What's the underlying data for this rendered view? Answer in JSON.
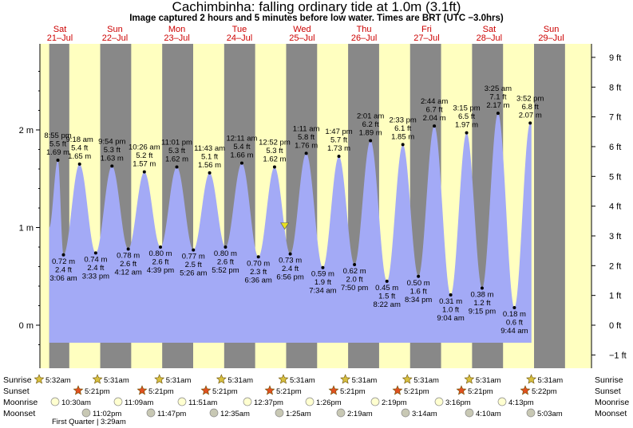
{
  "title": "Cachimbinha: falling  ordinary tide at 1.0m (3.1ft)",
  "subtitle": "Image captured 2 hours and 5 minutes before low water. Times are BRT (UTC −3.0hrs)",
  "colors": {
    "water": "#a3aaf6",
    "day": "#ffffc0",
    "night": "#888888",
    "dayLabel": "#cc0000"
  },
  "days": [
    {
      "dow": "Sat",
      "date": "21–Jul"
    },
    {
      "dow": "Sun",
      "date": "22–Jul"
    },
    {
      "dow": "Mon",
      "date": "23–Jul"
    },
    {
      "dow": "Tue",
      "date": "24–Jul"
    },
    {
      "dow": "Wed",
      "date": "25–Jul"
    },
    {
      "dow": "Thu",
      "date": "26–Jul"
    },
    {
      "dow": "Fri",
      "date": "27–Jul"
    },
    {
      "dow": "Sat",
      "date": "28–Jul"
    },
    {
      "dow": "Sun",
      "date": "29–Jul"
    }
  ],
  "chart_data": {
    "type": "area",
    "title": "Cachimbinha: falling  ordinary tide at 1.0m (3.1ft)",
    "ylabel_left_unit": "m",
    "ylabel_right_unit": "ft",
    "ylim_m": [
      -0.3,
      2.8
    ],
    "left_ticks": [
      "0 m",
      "1 m",
      "2 m"
    ],
    "right_ticks": [
      "−1 ft",
      "0 ft",
      "1 ft",
      "2 ft",
      "3 ft",
      "4 ft",
      "5 ft",
      "6 ft",
      "7 ft",
      "8 ft",
      "9 ft"
    ],
    "current_level_m": 1.0,
    "day_starts": [
      {
        "day": 0,
        "start": -0.25
      },
      {
        "day": 1,
        "start": 0.96
      },
      {
        "day": 2,
        "start": 1.96
      },
      {
        "day": 3,
        "start": 2.97
      },
      {
        "day": 4,
        "start": 3.98
      },
      {
        "day": 5,
        "start": 4.98
      },
      {
        "day": 6,
        "start": 5.99
      },
      {
        "day": 7,
        "start": 7.0
      },
      {
        "day": 8,
        "start": 8.0
      }
    ],
    "daylight": [
      {
        "rise": 0.224,
        "set": 0.723
      },
      {
        "rise": 1.223,
        "set": 1.723
      },
      {
        "rise": 2.223,
        "set": 2.723
      },
      {
        "rise": 3.223,
        "set": 3.723
      },
      {
        "rise": 4.223,
        "set": 4.723
      },
      {
        "rise": 5.223,
        "set": 5.723
      },
      {
        "rise": 6.223,
        "set": 6.723
      },
      {
        "rise": 7.223,
        "set": 7.723
      },
      {
        "rise": 8.223,
        "set": 8.723
      }
    ],
    "series": [
      {
        "name": "",
        "type": "tide",
        "points": [
          {
            "t": -0.1,
            "m": 1.0,
            "type": "start"
          },
          {
            "t": 0.04,
            "m": 1.69,
            "type": "high",
            "time": "8:55 pm",
            "ft": "5.5 ft",
            "mtxt": "1.69 m"
          },
          {
            "t": 0.13,
            "m": 0.72,
            "type": "low",
            "time": "3:06 am",
            "ft": "2.4 ft",
            "mtxt": "0.72 m"
          },
          {
            "t": 0.39,
            "m": 1.65,
            "type": "high",
            "time": "9:18 am",
            "ft": "5.4 ft",
            "mtxt": "1.65 m"
          },
          {
            "t": 0.65,
            "m": 0.74,
            "type": "low",
            "time": "3:33 pm",
            "ft": "2.4 ft",
            "mtxt": "0.74 m"
          },
          {
            "t": 0.913,
            "m": 1.63,
            "type": "high",
            "time": "9:54 pm",
            "ft": "5.3 ft",
            "mtxt": "1.63 m"
          },
          {
            "t": 1.175,
            "m": 0.78,
            "type": "low",
            "time": "4:12 am",
            "ft": "2.6 ft",
            "mtxt": "0.78 m"
          },
          {
            "t": 1.435,
            "m": 1.57,
            "type": "high",
            "time": "10:26 am",
            "ft": "5.2 ft",
            "mtxt": "1.57 m"
          },
          {
            "t": 1.695,
            "m": 0.8,
            "type": "low",
            "time": "4:39 pm",
            "ft": "2.6 ft",
            "mtxt": "0.80 m"
          },
          {
            "t": 1.959,
            "m": 1.62,
            "type": "high",
            "time": "11:01 pm",
            "ft": "5.3 ft",
            "mtxt": "1.62 m"
          },
          {
            "t": 2.226,
            "m": 0.77,
            "type": "low",
            "time": "5:26 am",
            "ft": "2.5 ft",
            "mtxt": "0.77 m"
          },
          {
            "t": 2.488,
            "m": 1.56,
            "type": "high",
            "time": "11:43 am",
            "ft": "5.1 ft",
            "mtxt": "1.56 m"
          },
          {
            "t": 2.744,
            "m": 0.8,
            "type": "low",
            "time": "5:52 pm",
            "ft": "2.6 ft",
            "mtxt": "0.80 m"
          },
          {
            "t": 3.008,
            "m": 1.66,
            "type": "high",
            "time": "12:11 am",
            "ft": "5.4 ft",
            "mtxt": "1.66 m"
          },
          {
            "t": 3.275,
            "m": 0.7,
            "type": "low",
            "time": "6:36 am",
            "ft": "2.3 ft",
            "mtxt": "0.70 m"
          },
          {
            "t": 3.536,
            "m": 1.62,
            "type": "high",
            "time": "12:52 pm",
            "ft": "5.3 ft",
            "mtxt": "1.62 m"
          },
          {
            "t": 3.789,
            "m": 0.73,
            "type": "low",
            "time": "6:56 pm",
            "ft": "2.4 ft",
            "mtxt": "0.73 m"
          },
          {
            "t": 4.047,
            "m": 1.76,
            "type": "high",
            "time": "1:11 am",
            "ft": "5.8 ft",
            "mtxt": "1.76 m"
          },
          {
            "t": 4.315,
            "m": 0.59,
            "type": "low",
            "time": "7:34 am",
            "ft": "1.9 ft",
            "mtxt": "0.59 m"
          },
          {
            "t": 4.574,
            "m": 1.73,
            "type": "high",
            "time": "1:47 pm",
            "ft": "5.7 ft",
            "mtxt": "1.73 m"
          },
          {
            "t": 4.826,
            "m": 0.62,
            "type": "low",
            "time": "7:50 pm",
            "ft": "2.0 ft",
            "mtxt": "0.62 m"
          },
          {
            "t": 5.084,
            "m": 1.89,
            "type": "high",
            "time": "2:01 am",
            "ft": "6.2 ft",
            "mtxt": "1.89 m"
          },
          {
            "t": 5.349,
            "m": 0.45,
            "type": "low",
            "time": "8:22 am",
            "ft": "1.5 ft",
            "mtxt": "0.45 m"
          },
          {
            "t": 5.606,
            "m": 1.85,
            "type": "high",
            "time": "2:33 pm",
            "ft": "6.1 ft",
            "mtxt": "1.85 m"
          },
          {
            "t": 5.857,
            "m": 0.5,
            "type": "low",
            "time": "8:34 pm",
            "ft": "1.6 ft",
            "mtxt": "0.50 m"
          },
          {
            "t": 6.114,
            "m": 2.04,
            "type": "high",
            "time": "2:44 am",
            "ft": "6.7 ft",
            "mtxt": "2.04 m"
          },
          {
            "t": 6.378,
            "m": 0.31,
            "type": "low",
            "time": "9:04 am",
            "ft": "1.0 ft",
            "mtxt": "0.31 m"
          },
          {
            "t": 6.635,
            "m": 1.97,
            "type": "high",
            "time": "3:15 pm",
            "ft": "6.5 ft",
            "mtxt": "1.97 m"
          },
          {
            "t": 6.885,
            "m": 0.38,
            "type": "low",
            "time": "9:15 pm",
            "ft": "1.2 ft",
            "mtxt": "0.38 m"
          },
          {
            "t": 7.142,
            "m": 2.17,
            "type": "high",
            "time": "3:25 am",
            "ft": "7.1 ft",
            "mtxt": "2.17 m"
          },
          {
            "t": 7.406,
            "m": 0.18,
            "type": "low",
            "time": "9:44 am",
            "ft": "0.6 ft",
            "mtxt": "0.18 m"
          },
          {
            "t": 7.661,
            "m": 2.07,
            "type": "high",
            "time": "3:52 pm",
            "ft": "6.8 ft",
            "mtxt": "2.07 m"
          }
        ]
      }
    ],
    "current_marker": {
      "t": 3.7,
      "m": 1.0
    }
  },
  "bottom_rows": {
    "labels": {
      "sunrise": "Sunrise",
      "sunset": "Sunset",
      "moonrise": "Moonrise",
      "moonset": "Moonset"
    },
    "sunrise": [
      {
        "t": -0.25,
        "text": "5:32am"
      },
      {
        "t": 1.0,
        "text": "5:31am"
      },
      {
        "t": 2.0,
        "text": "5:31am"
      },
      {
        "t": 3.0,
        "text": "5:31am"
      },
      {
        "t": 4.0,
        "text": "5:31am"
      },
      {
        "t": 5.0,
        "text": "5:31am"
      },
      {
        "t": 6.0,
        "text": "5:31am"
      },
      {
        "t": 7.0,
        "text": "5:31am"
      },
      {
        "t": 8.0,
        "text": "5:31am"
      }
    ],
    "sunset": [
      {
        "t": 0.55,
        "text": "5:21pm"
      },
      {
        "t": 1.55,
        "text": "5:21pm"
      },
      {
        "t": 2.55,
        "text": "5:21pm"
      },
      {
        "t": 3.55,
        "text": "5:21pm"
      },
      {
        "t": 4.55,
        "text": "5:21pm"
      },
      {
        "t": 5.55,
        "text": "5:21pm"
      },
      {
        "t": 6.55,
        "text": "5:21pm"
      },
      {
        "t": 7.55,
        "text": "5:22pm"
      }
    ],
    "moonrise": [
      {
        "t": 0.0,
        "text": "10:30am"
      },
      {
        "t": 1.0,
        "text": "11:09am"
      },
      {
        "t": 2.0,
        "text": "11:51am"
      },
      {
        "t": 3.0,
        "text": "12:37pm"
      },
      {
        "t": 4.0,
        "text": "1:26pm"
      },
      {
        "t": 5.0,
        "text": "2:19pm"
      },
      {
        "t": 6.0,
        "text": "3:16pm"
      },
      {
        "t": 7.0,
        "text": "4:13pm"
      }
    ],
    "moonset": [
      {
        "t": 0.5,
        "text": "11:02pm"
      },
      {
        "t": 1.5,
        "text": "11:47pm"
      },
      {
        "t": 2.5,
        "text": "12:35am"
      },
      {
        "t": 3.5,
        "text": "1:25am"
      },
      {
        "t": 4.5,
        "text": "2:19am"
      },
      {
        "t": 5.5,
        "text": "3:14am"
      },
      {
        "t": 6.5,
        "text": "4:10am"
      },
      {
        "t": 7.5,
        "text": "5:03am"
      }
    ],
    "phase_text": "First Quarter | 3:29am"
  }
}
